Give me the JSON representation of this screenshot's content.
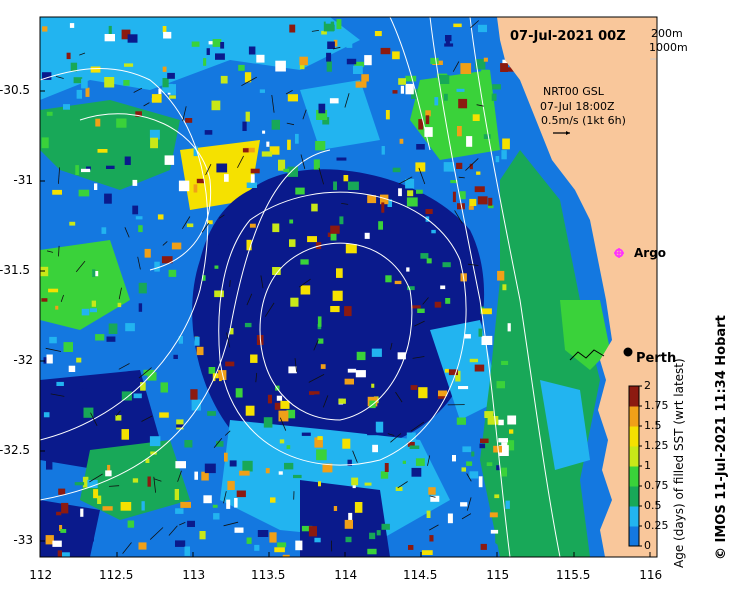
{
  "map": {
    "title": "07-Jul-2021 00Z",
    "isobaths": [
      "200m",
      "1000m"
    ],
    "current_product": "NRT00 GSL",
    "current_time": "07-Jul 18:00Z",
    "vector_scale": "0.5m/s (1kt 6h)",
    "city_label": "Perth",
    "argo_label": "Argo",
    "credit": "© IMOS 11-Jul-2021 11:34 Hobart",
    "x_ticks": [
      "112",
      "112.5",
      "113",
      "113.5",
      "114",
      "114.5",
      "115",
      "115.5",
      "116"
    ],
    "y_ticks": [
      "-30.5",
      "-31",
      "-31.5",
      "-32",
      "-32.5",
      "-33"
    ],
    "colorbar": {
      "label": "Age (days) of filled SST (wrt latest)",
      "ticks": [
        "2",
        "1.75",
        "1.5",
        "1.25",
        "1",
        "0.75",
        "0.5",
        "0.25",
        "0"
      ]
    },
    "colors": {
      "land": "#f9c79b",
      "age_0": "#0a1a8c",
      "age_0_25": "#1478e0",
      "age_0_5": "#22b4f0",
      "age_0_75": "#18a858",
      "age_1": "#3ad23a",
      "age_1_25": "#c8e818",
      "age_1_5": "#f5e100",
      "age_1_75": "#f0a018",
      "age_2": "#8c1a10",
      "argo_marker": "#ff33ff"
    }
  }
}
